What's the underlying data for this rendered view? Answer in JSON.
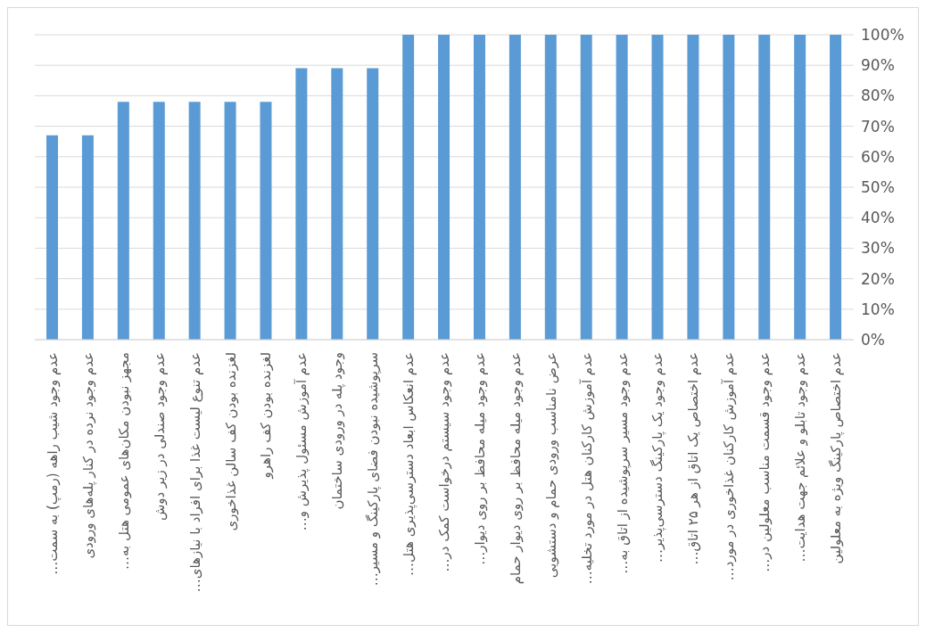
{
  "chart_data": {
    "type": "bar",
    "categories": [
      "عدم وجود شیب راهه (رمپ) به سمت…",
      "عدم وجود نرده در کنار پله‌های ورودی",
      "مجهز نبودن مکان‌های عمومی هتل به…",
      "عدم وجود صندلی در زیر دوش",
      "عدم تنوع لیست غذا برای افراد با نیازهای…",
      "لغزنده بودن کف سالن غذاخوری",
      "لغزنده بودن کف راهرو",
      "عدم آموزش مسئول پذیرش و…",
      "وجود پله در ورودی ساختمان",
      "سرپوشیده نبودن فضای پارکینگ و مسیر…",
      "عدم انعکاس ابعاد دسترسی‌پذیری هتل…",
      "عدم وجود سیستم درخواست کمک در…",
      "عدم وجود میله محافظ بر روی دیوار…",
      "عدم وجود میله محافظ بر روی دیوار حمام",
      "عرض نامناسب ورودی حمام و دستشویی",
      "عدم آموزش کارکنان هتل در مورد تخلیه…",
      "عدم وجود مسیر سرپوشیده از اتاق به…",
      "عدم وجود یک پارکینگ دسترسی‌پذیر…",
      "عدم اختصاص یک اتاق از هر ۲۵ اتاق…",
      "عدم آموزش کارکنان غذاخوری در مورد…",
      "عدم وجود قسمت مناسب معلولین در…",
      "عدم وجود تابلو و علائم جهت هدایت…",
      "عدم اختصاص پارکینگ ویژه به معلولین"
    ],
    "values": [
      67,
      67,
      78,
      78,
      78,
      78,
      78,
      89,
      89,
      89,
      100,
      100,
      100,
      100,
      100,
      100,
      100,
      100,
      100,
      100,
      100,
      100,
      100
    ],
    "color": "#5b9bd5",
    "ylim": [
      0,
      100
    ],
    "yticks": [
      {
        "value": 0,
        "label": "0%"
      },
      {
        "value": 10,
        "label": "10%"
      },
      {
        "value": 20,
        "label": "20%"
      },
      {
        "value": 30,
        "label": "30%"
      },
      {
        "value": 40,
        "label": "40%"
      },
      {
        "value": 50,
        "label": "50%"
      },
      {
        "value": 60,
        "label": "60%"
      },
      {
        "value": 70,
        "label": "70%"
      },
      {
        "value": 80,
        "label": "80%"
      },
      {
        "value": 90,
        "label": "90%"
      },
      {
        "value": 100,
        "label": "100%"
      }
    ],
    "grid": "y"
  }
}
